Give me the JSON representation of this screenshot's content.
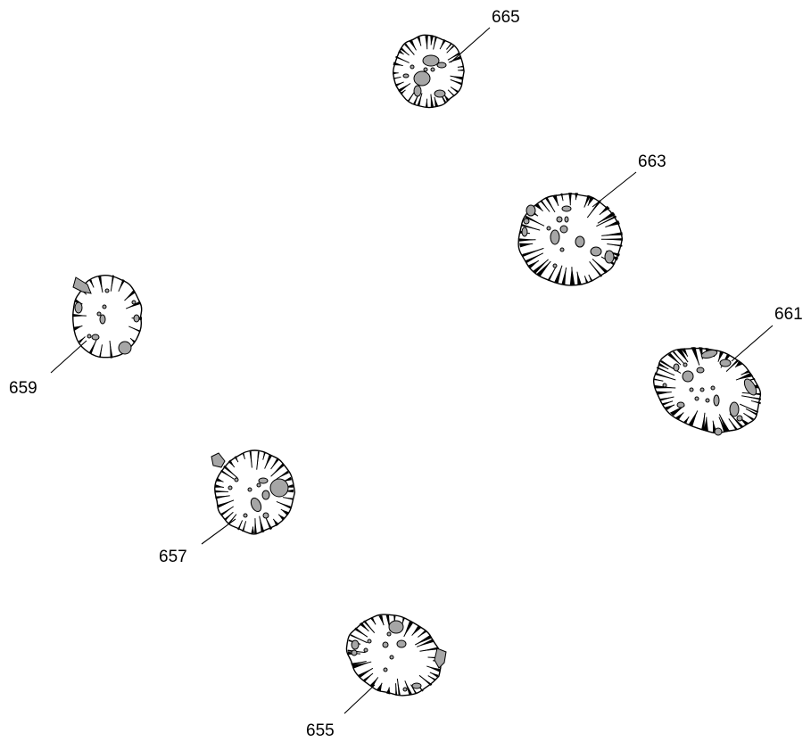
{
  "figure": {
    "particles": [
      {
        "id": "p665",
        "label": "665"
      },
      {
        "id": "p663",
        "label": "663"
      },
      {
        "id": "p661",
        "label": "661"
      },
      {
        "id": "p659",
        "label": "659"
      },
      {
        "id": "p657",
        "label": "657"
      },
      {
        "id": "p655",
        "label": "655"
      }
    ]
  },
  "colors": {
    "outline": "#000000",
    "fill": "#ffffff",
    "inclusion": "#a6a6a6"
  }
}
